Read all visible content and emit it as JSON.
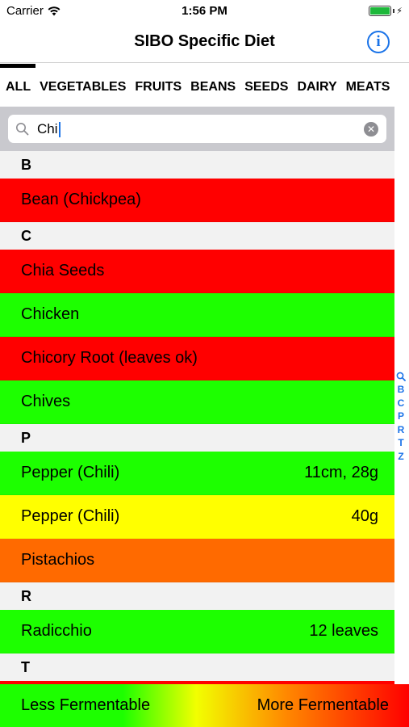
{
  "status": {
    "carrier": "Carrier",
    "time": "1:56 PM",
    "battery_color": "#1db83a"
  },
  "nav": {
    "title": "SIBO Specific Diet",
    "info_icon": "info-circle-icon",
    "accent": "#1a73e8"
  },
  "tabs": [
    "ALL",
    "VEGETABLES",
    "FRUITS",
    "BEANS",
    "SEEDS",
    "DAIRY",
    "MEATS"
  ],
  "search": {
    "value": "Chi",
    "search_icon": "magnifier-icon",
    "clear_icon": "clear-circle-icon"
  },
  "colors": {
    "red": "#ff0000",
    "green": "#1dff00",
    "yellow": "#ffff00",
    "orange": "#ff6a00"
  },
  "sections": [
    {
      "letter": "B",
      "items": [
        {
          "name": "Bean (Chickpea)",
          "amount": "",
          "color": "#ff0000"
        }
      ]
    },
    {
      "letter": "C",
      "items": [
        {
          "name": "Chia Seeds",
          "amount": "",
          "color": "#ff0000"
        },
        {
          "name": "Chicken",
          "amount": "",
          "color": "#1dff00"
        },
        {
          "name": "Chicory Root (leaves ok)",
          "amount": "",
          "color": "#ff0000"
        },
        {
          "name": "Chives",
          "amount": "",
          "color": "#1dff00"
        }
      ]
    },
    {
      "letter": "P",
      "items": [
        {
          "name": "Pepper (Chili)",
          "amount": "11cm, 28g",
          "color": "#1dff00"
        },
        {
          "name": "Pepper (Chili)",
          "amount": "40g",
          "color": "#ffff00"
        },
        {
          "name": "Pistachios",
          "amount": "",
          "color": "#ff6a00"
        }
      ]
    },
    {
      "letter": "R",
      "items": [
        {
          "name": "Radicchio",
          "amount": "12 leaves",
          "color": "#1dff00"
        }
      ]
    },
    {
      "letter": "T",
      "items": [
        {
          "name": "",
          "amount": "",
          "color": "#ff0000"
        }
      ]
    }
  ],
  "index": [
    "B",
    "C",
    "P",
    "R",
    "T",
    "Z"
  ],
  "legend": {
    "left": "Less Fermentable",
    "right": "More Fermentable"
  }
}
